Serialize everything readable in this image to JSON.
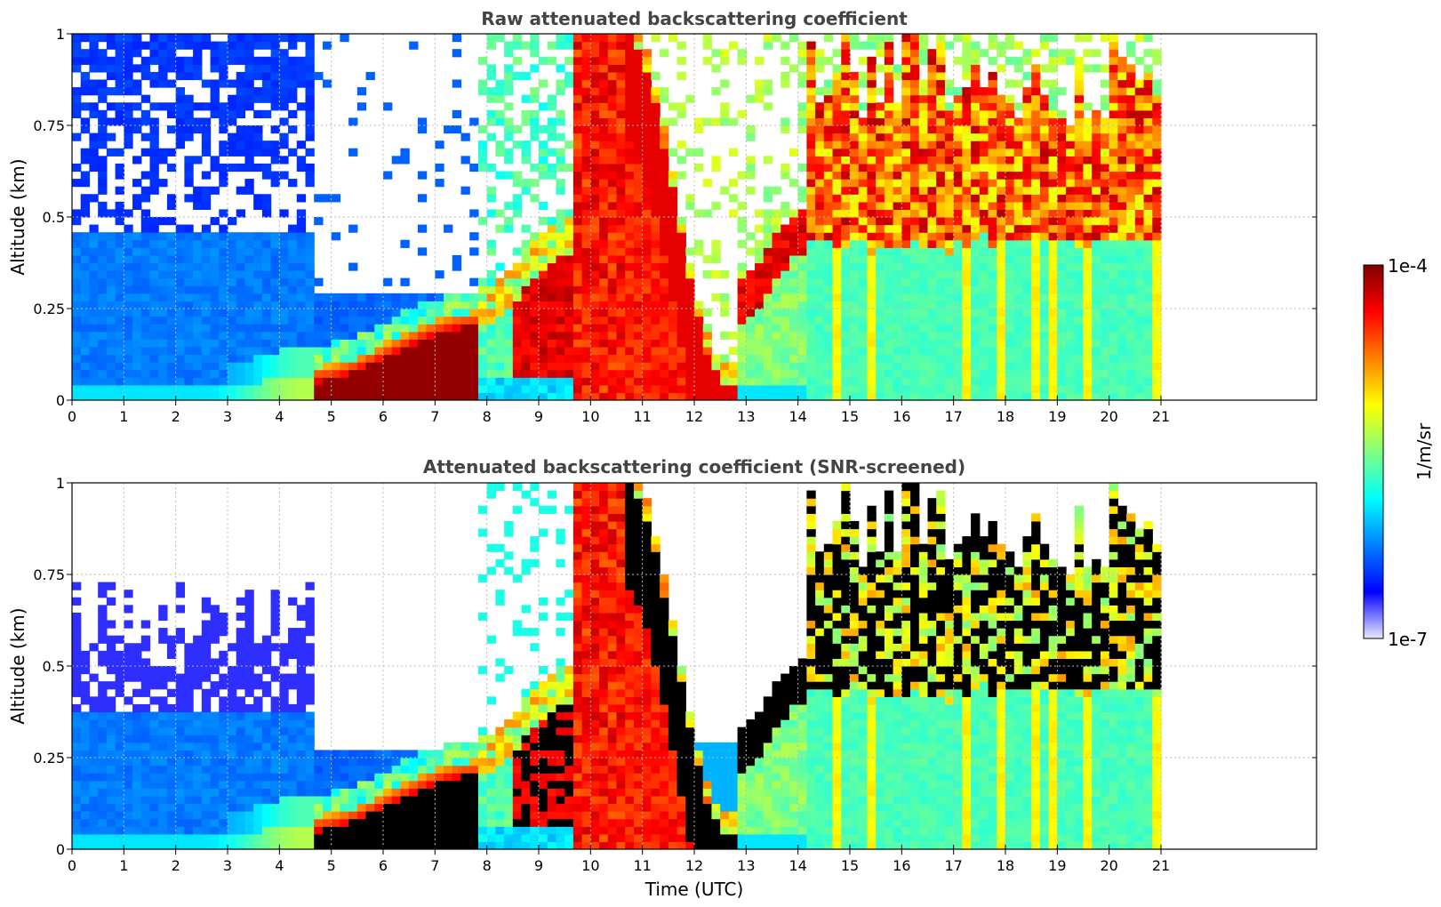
{
  "chart_data": [
    {
      "type": "heatmap",
      "title": "Raw attenuated backscattering coefficient",
      "xlabel": "",
      "ylabel": "Altitude (km)",
      "xlim": [
        0,
        24
      ],
      "ylim": [
        0,
        1
      ],
      "xticks": [
        0,
        1,
        2,
        3,
        4,
        5,
        6,
        7,
        8,
        9,
        10,
        11,
        12,
        13,
        14,
        15,
        16,
        17,
        18,
        19,
        20,
        21
      ],
      "xtick_labels": [
        "0",
        "1",
        "2",
        "3",
        "4",
        "5",
        "6",
        "7",
        "8",
        "9",
        "10",
        "11",
        "12",
        "13",
        "14",
        "15",
        "16",
        "17",
        "18",
        "19",
        "20",
        "21"
      ],
      "yticks": [
        0,
        0.25,
        0.5,
        0.75,
        1
      ],
      "ytick_labels": [
        "0",
        "0.25",
        "0.5",
        "0.75",
        "1"
      ],
      "grid": true,
      "data_extent_hours": [
        0,
        21
      ],
      "features": [
        {
          "time": [
            0,
            4.6
          ],
          "description": "low blue backscatter with noisy upper levels"
        },
        {
          "time": [
            4.6,
            7.8
          ],
          "description": "dense surface layer, top rising from 0.05 to 0.2 km"
        },
        {
          "time": [
            9.7,
            10.7
          ],
          "description": "strong backscatter through full column"
        },
        {
          "time": [
            10.7,
            12.7
          ],
          "description": "descending layer from 1 km to surface"
        },
        {
          "time": [
            14,
            21
          ],
          "description": "broken layers between 0.4 and 1 km"
        }
      ]
    },
    {
      "type": "heatmap",
      "title": "Attenuated backscattering coefficient (SNR-screened)",
      "xlabel": "Time (UTC)",
      "ylabel": "Altitude (km)",
      "xlim": [
        0,
        24
      ],
      "ylim": [
        0,
        1
      ],
      "xticks": [
        0,
        1,
        2,
        3,
        4,
        5,
        6,
        7,
        8,
        9,
        10,
        11,
        12,
        13,
        14,
        15,
        16,
        17,
        18,
        19,
        20,
        21
      ],
      "xtick_labels": [
        "0",
        "1",
        "2",
        "3",
        "4",
        "5",
        "6",
        "7",
        "8",
        "9",
        "10",
        "11",
        "12",
        "13",
        "14",
        "15",
        "16",
        "17",
        "18",
        "19",
        "20",
        "21"
      ],
      "yticks": [
        0,
        0.25,
        0.5,
        0.75,
        1
      ],
      "ytick_labels": [
        "0",
        "0.25",
        "0.5",
        "0.75",
        "1"
      ],
      "grid": true,
      "data_extent_hours": [
        0,
        21
      ]
    }
  ],
  "colorbar": {
    "label": "1/m/sr",
    "max_label": "1e-4",
    "min_label": "1e-7",
    "scale": "log",
    "range": [
      1e-07,
      0.0001
    ],
    "colormap_stops": [
      "#e8e8ff",
      "#0000ff",
      "#0080ff",
      "#00ffff",
      "#80ff80",
      "#ffff00",
      "#ff8000",
      "#ff0000",
      "#800000"
    ]
  }
}
